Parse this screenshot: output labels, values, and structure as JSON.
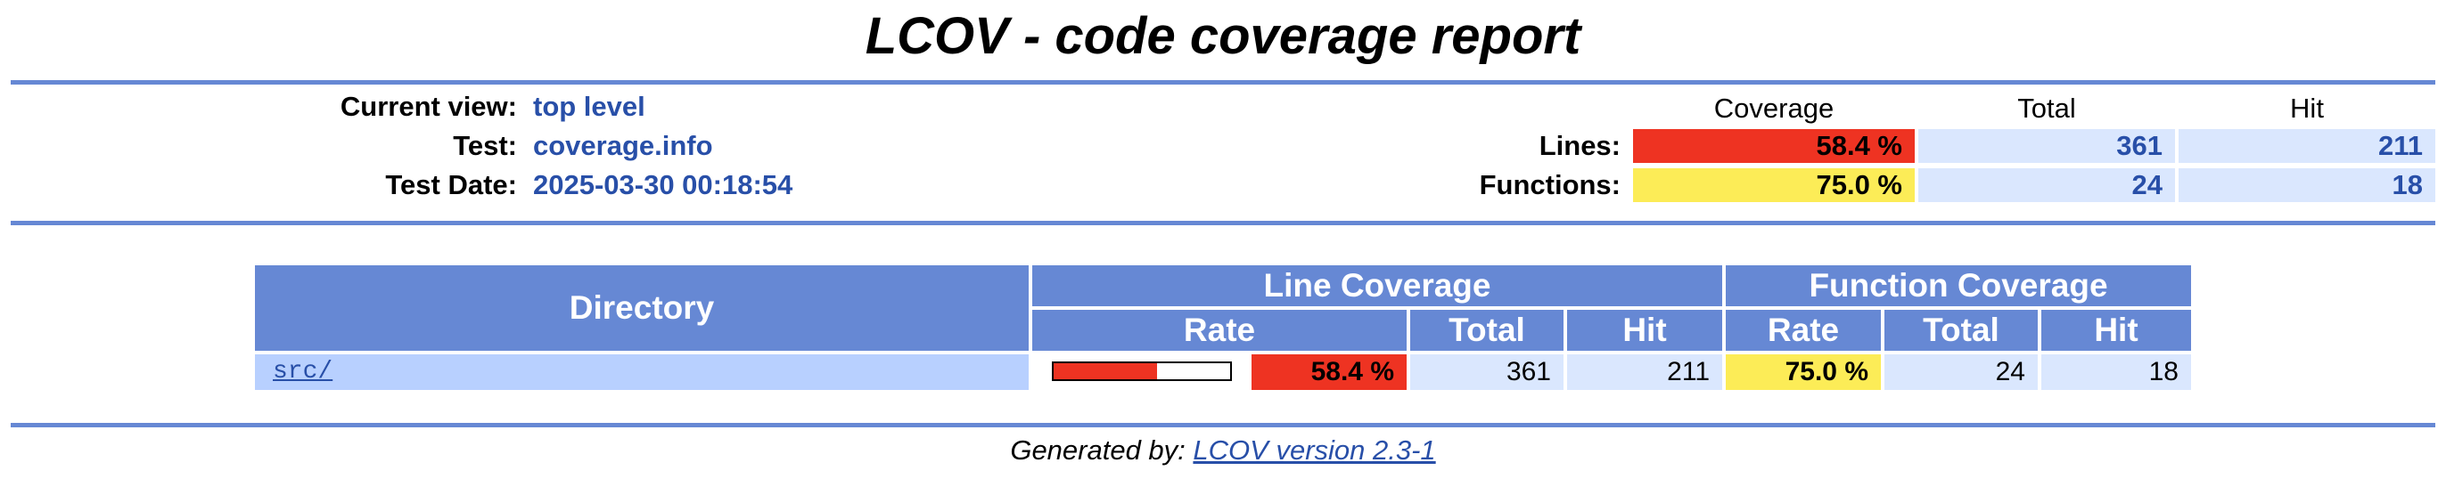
{
  "title": "LCOV - code coverage report",
  "header": {
    "current_view_label": "Current view:",
    "current_view_value": "top level",
    "test_label": "Test:",
    "test_value": "coverage.info",
    "test_date_label": "Test Date:",
    "test_date_value": "2025-03-30 00:18:54"
  },
  "summary": {
    "col_coverage": "Coverage",
    "col_total": "Total",
    "col_hit": "Hit",
    "lines": {
      "label": "Lines:",
      "coverage": "58.4 %",
      "total": "361",
      "hit": "211",
      "fraction": 0.584
    },
    "functions": {
      "label": "Functions:",
      "coverage": "75.0 %",
      "total": "24",
      "hit": "18",
      "fraction": 0.75
    }
  },
  "table": {
    "col_directory": "Directory",
    "group_line": "Line Coverage",
    "group_function": "Function Coverage",
    "col_rate": "Rate",
    "col_total": "Total",
    "col_hit": "Hit",
    "rows": [
      {
        "directory": "src/",
        "line_rate": "58.4 %",
        "line_fraction": 0.584,
        "line_total": "361",
        "line_hit": "211",
        "func_rate": "75.0 %",
        "func_total": "24",
        "func_hit": "18"
      }
    ]
  },
  "footer": {
    "prefix": "Generated by:",
    "link_text": "LCOV version 2.3-1"
  },
  "colors": {
    "ruler": "#6688d4",
    "low": "#ee3322",
    "medium": "#fcec57",
    "link": "#284fa8",
    "cell": "#dae7fe",
    "file_cell": "#b8d0ff"
  }
}
